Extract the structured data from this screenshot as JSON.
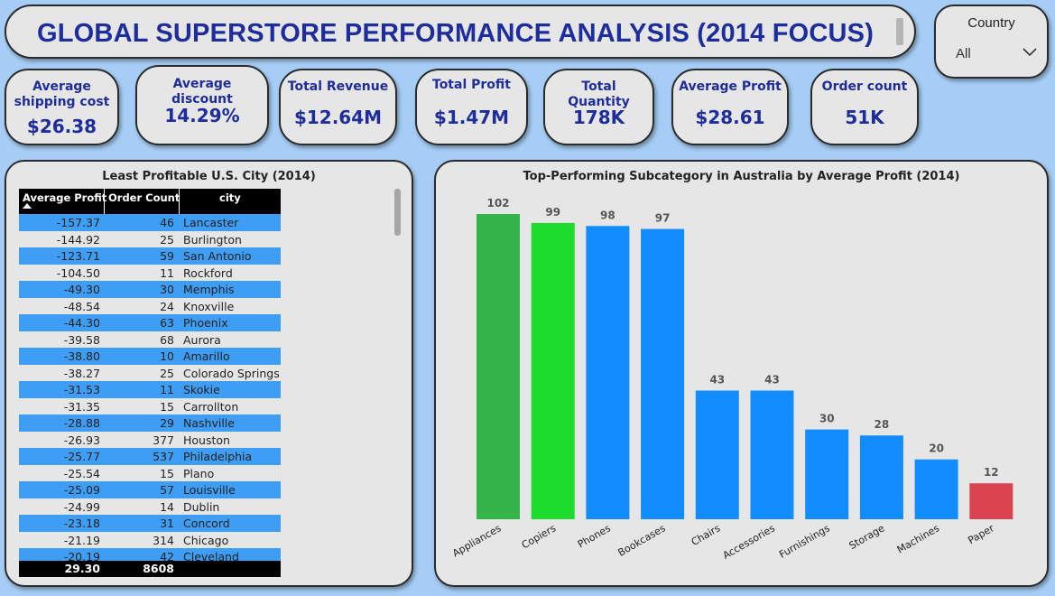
{
  "header": {
    "title": "GLOBAL SUPERSTORE PERFORMANCE ANALYSIS (2014 FOCUS)"
  },
  "filter": {
    "label": "Country",
    "value": "All",
    "icon": "chevron-down-icon"
  },
  "kpis": [
    {
      "label": "Average shipping cost",
      "value": "$26.38"
    },
    {
      "label": "Average discount",
      "value": "14.29%"
    },
    {
      "label": "Total Revenue",
      "value": "$12.64M"
    },
    {
      "label": "Total Profit",
      "value": "$1.47M"
    },
    {
      "label": "Total Quantity",
      "value": "178K"
    },
    {
      "label": "Average Profit",
      "value": "$28.61"
    },
    {
      "label": "Order count",
      "value": "51K"
    }
  ],
  "table": {
    "title": "Least Profitable U.S. City (2014)",
    "headers": [
      "Average Profit",
      "Order Count",
      "city"
    ],
    "rows": [
      [
        "-157.37",
        "46",
        "Lancaster"
      ],
      [
        "-144.92",
        "25",
        "Burlington"
      ],
      [
        "-123.71",
        "59",
        "San Antonio"
      ],
      [
        "-104.50",
        "11",
        "Rockford"
      ],
      [
        "-49.30",
        "30",
        "Memphis"
      ],
      [
        "-48.54",
        "24",
        "Knoxville"
      ],
      [
        "-44.30",
        "63",
        "Phoenix"
      ],
      [
        "-39.58",
        "68",
        "Aurora"
      ],
      [
        "-38.80",
        "10",
        "Amarillo"
      ],
      [
        "-38.27",
        "25",
        "Colorado Springs"
      ],
      [
        "-31.53",
        "11",
        "Skokie"
      ],
      [
        "-31.35",
        "15",
        "Carrollton"
      ],
      [
        "-28.88",
        "29",
        "Nashville"
      ],
      [
        "-26.93",
        "377",
        "Houston"
      ],
      [
        "-25.77",
        "537",
        "Philadelphia"
      ],
      [
        "-25.54",
        "15",
        "Plano"
      ],
      [
        "-25.09",
        "57",
        "Louisville"
      ],
      [
        "-24.99",
        "14",
        "Dublin"
      ],
      [
        "-23.18",
        "31",
        "Concord"
      ],
      [
        "-21.19",
        "314",
        "Chicago"
      ],
      [
        "-20.19",
        "42",
        "Cleveland"
      ]
    ],
    "totals": [
      "29.30",
      "8608",
      ""
    ],
    "sort_icon": "sort-ascending-icon"
  },
  "chart_data": {
    "type": "bar",
    "title": "Top-Performing Subcategory in Australia by Average Profit (2014)",
    "categories": [
      "Appliances",
      "Copiers",
      "Phones",
      "Bookcases",
      "Chairs",
      "Accessories",
      "Furnishings",
      "Storage",
      "Machines",
      "Paper"
    ],
    "values": [
      102,
      99,
      98,
      97,
      43,
      43,
      30,
      28,
      20,
      12
    ],
    "data_labels": [
      "102",
      "99",
      "98",
      "97",
      "43",
      "43",
      "30",
      "28",
      "20",
      "12"
    ],
    "colors": [
      "#33b54a",
      "#1ddc2b",
      "#118dff",
      "#118dff",
      "#118dff",
      "#118dff",
      "#118dff",
      "#118dff",
      "#118dff",
      "#da434f"
    ],
    "xlabel": "",
    "ylabel": "",
    "ylim": [
      0,
      102
    ],
    "grid": false,
    "legend": "none"
  }
}
